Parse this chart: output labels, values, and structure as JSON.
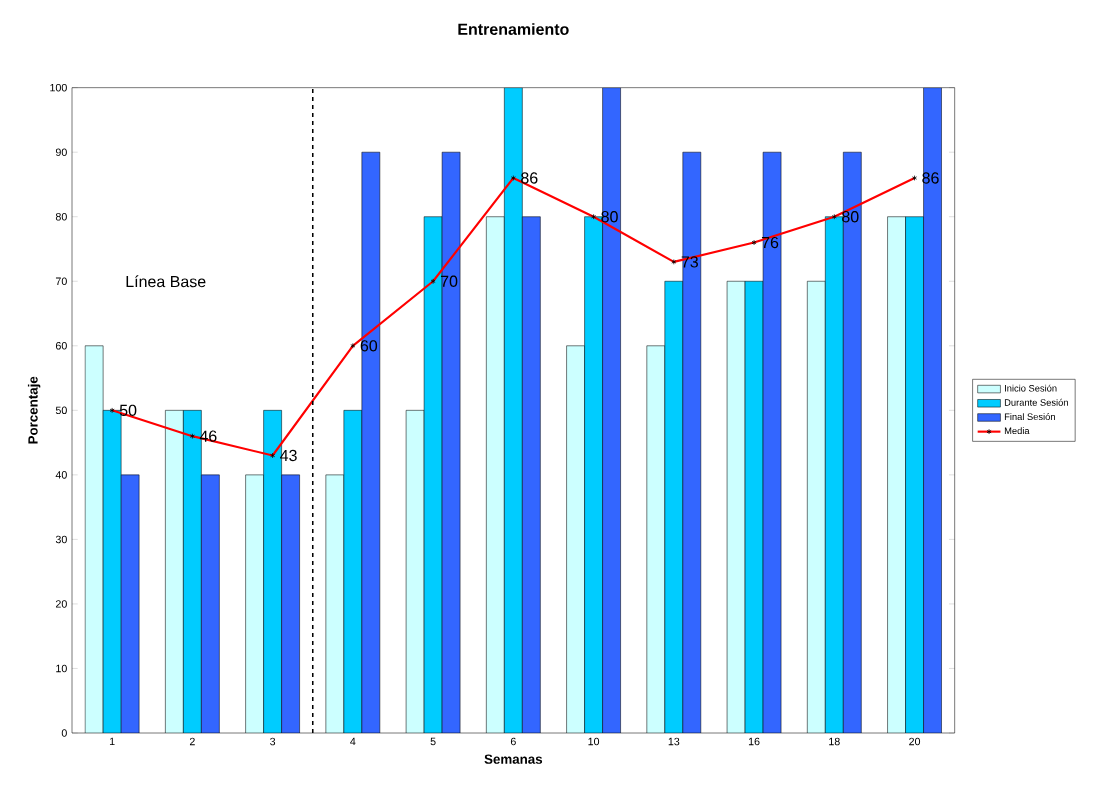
{
  "chart_data": {
    "type": "bar",
    "title": "Entrenamiento",
    "xlabel": "Semanas",
    "ylabel": "Porcentaje",
    "categories": [
      "1",
      "2",
      "3",
      "4",
      "5",
      "6",
      "10",
      "13",
      "16",
      "18",
      "20"
    ],
    "series": [
      {
        "name": "Inicio Sesión",
        "color": "#ccffff",
        "values": [
          60,
          50,
          40,
          40,
          50,
          80,
          60,
          60,
          70,
          70,
          80
        ]
      },
      {
        "name": "Durante Sesión",
        "color": "#00ccff",
        "values": [
          50,
          50,
          50,
          50,
          80,
          100,
          80,
          70,
          70,
          80,
          80
        ]
      },
      {
        "name": "Final Sesión",
        "color": "#3366ff",
        "values": [
          40,
          40,
          40,
          90,
          90,
          80,
          100,
          90,
          90,
          90,
          100
        ]
      },
      {
        "name": "Media",
        "type": "line",
        "color": "#ff0000",
        "marker": "cross",
        "data_labels": true,
        "values": [
          50,
          46,
          43,
          60,
          70,
          86,
          80,
          73,
          76,
          80,
          86
        ]
      }
    ],
    "ylim": [
      0,
      100
    ],
    "yticks": [
      0,
      10,
      20,
      30,
      40,
      50,
      60,
      70,
      80,
      90,
      100
    ],
    "annotations": [
      "Línea Base"
    ],
    "legend": "right"
  }
}
